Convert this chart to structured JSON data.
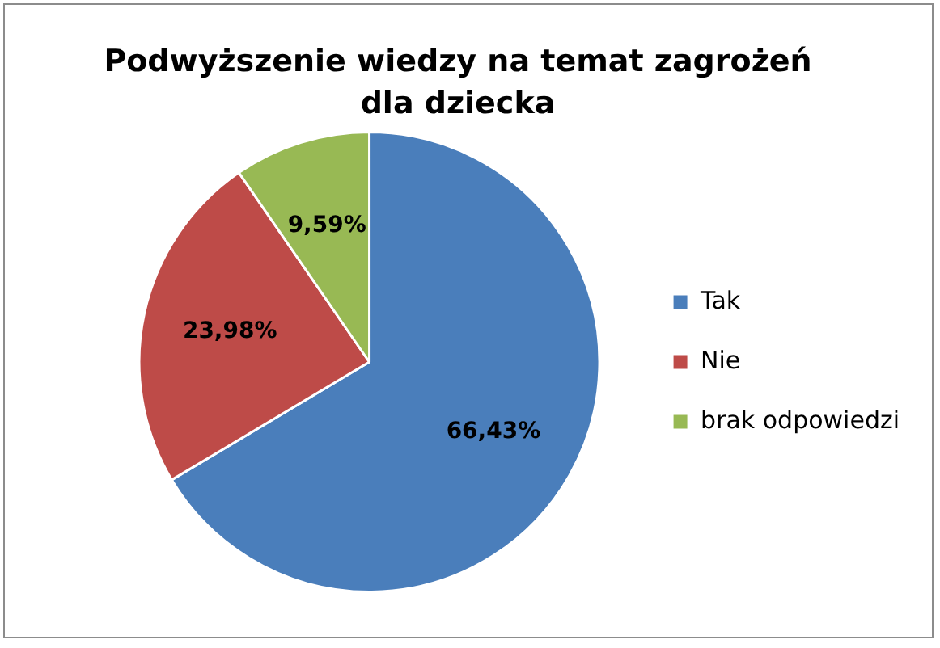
{
  "chart_data": {
    "type": "pie",
    "title": "Podwyższenie wiedzy na temat zagrożeń dla dziecka",
    "categories": [
      "Tak",
      "Nie",
      "brak odpowiedzi"
    ],
    "values": [
      66.43,
      23.98,
      9.59
    ],
    "colors": [
      "#4a7ebb",
      "#be4b48",
      "#98b954"
    ],
    "value_labels": [
      "66,43%",
      "23,98%",
      "9,59%"
    ],
    "legend": "right"
  }
}
